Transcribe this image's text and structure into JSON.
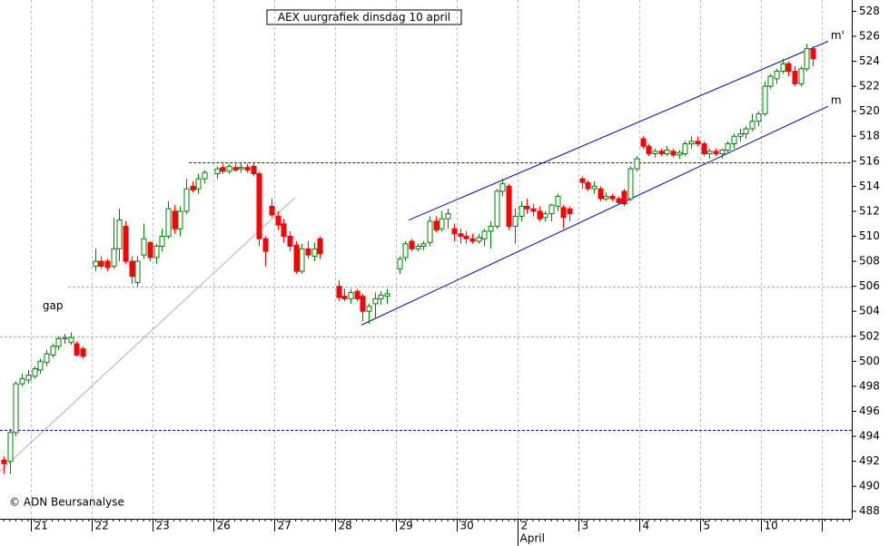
{
  "chart_data": {
    "type": "candlestick",
    "title": "AEX uurgrafiek dinsdag 10 april",
    "source": "© ADN Beursanalyse",
    "up_color": "#008000",
    "down_color": "#ff0000",
    "grid": true,
    "xlim": [
      -0.6,
      139.4
    ],
    "ylim": [
      487.4,
      528.9
    ],
    "yticks": [
      488,
      490,
      492,
      494,
      496,
      498,
      500,
      502,
      504,
      506,
      508,
      510,
      512,
      514,
      516,
      518,
      520,
      522,
      524,
      526,
      528
    ],
    "xticks": [
      {
        "value": 4.5,
        "label": "21"
      },
      {
        "value": 14.5,
        "label": "22"
      },
      {
        "value": 24.5,
        "label": "23"
      },
      {
        "value": 34.5,
        "label": "26"
      },
      {
        "value": 44.5,
        "label": "27"
      },
      {
        "value": 54.5,
        "label": "28"
      },
      {
        "value": 64.5,
        "label": "29"
      },
      {
        "value": 74.5,
        "label": "30"
      },
      {
        "value": 84.5,
        "label": "2"
      },
      {
        "value": 94.5,
        "label": "3"
      },
      {
        "value": 104.5,
        "label": "4"
      },
      {
        "value": 114.5,
        "label": "5"
      },
      {
        "value": 124.5,
        "label": "10"
      },
      {
        "value": 134.5,
        "label": null
      }
    ],
    "month_labels": [
      {
        "value": 84.5,
        "label": "April"
      }
    ],
    "x": [
      0,
      1,
      2,
      3,
      4,
      5,
      6,
      7,
      8,
      9,
      10,
      11,
      12,
      13,
      15,
      16,
      17,
      18,
      19,
      20,
      21,
      22,
      23,
      24,
      25,
      26,
      27,
      28,
      29,
      30,
      31,
      32,
      33,
      35,
      36,
      37,
      38,
      39,
      40,
      41,
      42,
      43,
      44,
      45,
      46,
      47,
      48,
      49,
      50,
      51,
      52,
      55,
      56,
      57,
      58,
      59,
      60,
      61,
      62,
      63,
      65,
      66,
      67,
      68,
      69,
      70,
      71,
      72,
      73,
      74,
      75,
      76,
      77,
      78,
      79,
      80,
      81,
      82,
      83,
      84,
      85,
      86,
      87,
      88,
      89,
      90,
      91,
      92,
      93,
      95,
      96,
      97,
      98,
      99,
      100,
      101,
      102,
      103,
      104,
      105,
      106,
      107,
      108,
      109,
      110,
      111,
      112,
      113,
      114,
      115,
      116,
      117,
      118,
      119,
      120,
      121,
      122,
      123,
      124,
      125,
      126,
      127,
      128,
      129,
      130,
      131,
      132,
      133
    ],
    "open": [
      492.1,
      492.0,
      494.3,
      498.2,
      498.5,
      498.8,
      499.3,
      499.9,
      500.5,
      501.2,
      501.8,
      501.5,
      501.4,
      501.0,
      507.6,
      508.0,
      508.0,
      507.6,
      509.0,
      510.8,
      508.0,
      506.3,
      508.5,
      509.5,
      508.3,
      509.2,
      510.0,
      512.0,
      510.6,
      512.0,
      514.0,
      513.8,
      514.6,
      515.0,
      515.5,
      515.2,
      515.5,
      515.4,
      515.5,
      515.6,
      515.0,
      509.8,
      512.4,
      511.6,
      511.0,
      510.0,
      509.3,
      507.2,
      509.0,
      508.4,
      509.8,
      506.0,
      505.2,
      505.0,
      505.6,
      505.2,
      504.0,
      504.6,
      505.0,
      505.2,
      507.4,
      508.3,
      509.6,
      509.0,
      509.2,
      509.5,
      511.2,
      510.6,
      511.4,
      510.6,
      510.2,
      510.0,
      509.8,
      509.6,
      509.8,
      510.4,
      510.8,
      513.6,
      514.0,
      510.8,
      511.6,
      512.4,
      512.2,
      512.0,
      511.5,
      511.8,
      512.4,
      512.3,
      512.2,
      514.6,
      514.3,
      513.8,
      513.8,
      513.0,
      513.2,
      513.0,
      513.6,
      513.0,
      515.4,
      517.8,
      517.2,
      516.6,
      516.8,
      516.6,
      516.8,
      516.5,
      516.6,
      517.4,
      517.6,
      517.4,
      516.6,
      516.8,
      516.6,
      516.9,
      517.4,
      518.0,
      518.2,
      518.6,
      519.2,
      519.8,
      522.0,
      522.6,
      523.2,
      523.8,
      523.2,
      522.2,
      523.4,
      525.0
    ],
    "high": [
      492.4,
      494.6,
      498.4,
      499.0,
      499.3,
      499.6,
      500.2,
      500.9,
      501.4,
      502.0,
      502.2,
      502.3,
      501.6,
      501.2,
      509.0,
      508.4,
      508.2,
      511.5,
      512.2,
      511.2,
      508.4,
      508.4,
      511.0,
      509.6,
      509.4,
      510.6,
      512.8,
      512.5,
      512.4,
      514.6,
      514.4,
      515.0,
      515.3,
      515.6,
      515.8,
      515.8,
      515.8,
      515.9,
      515.8,
      515.9,
      515.2,
      510.0,
      513.0,
      512.0,
      511.4,
      510.4,
      509.6,
      509.4,
      509.6,
      509.5,
      510.0,
      506.5,
      505.8,
      505.8,
      505.8,
      505.4,
      504.6,
      505.5,
      505.6,
      505.8,
      508.4,
      509.6,
      509.8,
      509.4,
      509.6,
      511.6,
      511.6,
      512.0,
      512.2,
      511.0,
      510.6,
      510.4,
      510.2,
      510.2,
      510.6,
      511.2,
      513.8,
      514.6,
      514.2,
      512.2,
      512.8,
      513.0,
      512.6,
      512.4,
      512.0,
      512.6,
      513.4,
      512.5,
      512.4,
      514.8,
      514.5,
      514.4,
      514.0,
      513.5,
      513.4,
      513.2,
      513.8,
      515.6,
      516.4,
      518.0,
      517.4,
      517.0,
      517.0,
      517.2,
      517.0,
      516.9,
      517.6,
      518.0,
      518.0,
      517.6,
      517.0,
      517.0,
      517.0,
      517.6,
      518.2,
      518.6,
      518.8,
      519.8,
      520.0,
      522.4,
      523.0,
      523.4,
      524.2,
      524.0,
      523.6,
      523.6,
      525.4,
      525.2
    ],
    "low": [
      491.0,
      491.0,
      494.0,
      498.0,
      498.2,
      498.6,
      499.0,
      499.6,
      500.3,
      500.9,
      501.4,
      501.3,
      500.4,
      500.2,
      507.2,
      507.4,
      507.2,
      507.4,
      508.0,
      507.8,
      506.2,
      506.0,
      508.2,
      508.0,
      507.8,
      508.8,
      509.8,
      510.2,
      510.0,
      511.8,
      513.5,
      513.4,
      514.2,
      514.6,
      515.0,
      515.0,
      515.2,
      515.1,
      515.1,
      514.8,
      509.2,
      507.6,
      511.5,
      510.5,
      509.5,
      508.8,
      507.0,
      507.0,
      508.2,
      508.0,
      508.2,
      504.8,
      504.8,
      504.6,
      504.8,
      503.2,
      503.0,
      503.5,
      504.5,
      504.6,
      507.0,
      508.0,
      508.8,
      508.8,
      508.9,
      509.2,
      510.3,
      510.4,
      510.6,
      509.6,
      509.4,
      509.4,
      509.4,
      509.4,
      509.2,
      509.0,
      510.6,
      513.2,
      510.5,
      509.4,
      511.2,
      511.8,
      511.6,
      511.2,
      511.2,
      511.2,
      512.0,
      510.6,
      511.2,
      513.8,
      513.6,
      513.4,
      512.8,
      512.8,
      512.8,
      512.5,
      512.4,
      512.8,
      515.2,
      517.0,
      516.4,
      516.3,
      516.4,
      516.4,
      516.3,
      516.2,
      516.4,
      517.0,
      517.2,
      516.4,
      516.2,
      516.4,
      516.2,
      516.6,
      517.0,
      517.6,
      517.8,
      518.4,
      518.8,
      519.6,
      521.8,
      522.2,
      523.0,
      522.8,
      522.0,
      522.0,
      523.2,
      523.6
    ],
    "close": [
      491.8,
      494.3,
      498.2,
      498.6,
      498.9,
      499.4,
      500.0,
      500.6,
      501.2,
      501.8,
      501.9,
      501.9,
      500.5,
      500.4,
      508.0,
      507.6,
      507.5,
      509.0,
      511.3,
      508.0,
      506.8,
      508.0,
      509.8,
      508.3,
      509.2,
      510.0,
      512.2,
      510.6,
      512.0,
      513.8,
      513.7,
      514.6,
      515.1,
      515.4,
      515.2,
      515.6,
      515.3,
      515.5,
      515.3,
      515.0,
      509.8,
      508.8,
      511.7,
      510.9,
      510.0,
      509.2,
      507.2,
      509.0,
      508.5,
      509.0,
      508.6,
      505.1,
      505.0,
      505.5,
      505.0,
      504.0,
      504.4,
      505.0,
      505.3,
      505.4,
      508.2,
      509.4,
      509.0,
      509.2,
      509.4,
      511.2,
      510.5,
      511.4,
      511.8,
      510.2,
      510.0,
      509.8,
      509.6,
      509.9,
      510.4,
      510.8,
      513.6,
      514.2,
      510.8,
      511.6,
      512.4,
      512.2,
      512.0,
      511.4,
      511.8,
      512.5,
      513.2,
      511.5,
      511.8,
      514.3,
      513.8,
      514.0,
      513.0,
      513.2,
      513.0,
      512.7,
      512.6,
      515.4,
      516.2,
      517.2,
      516.6,
      516.8,
      516.6,
      516.9,
      516.5,
      516.7,
      517.4,
      517.6,
      517.4,
      516.6,
      516.8,
      516.6,
      516.9,
      517.4,
      518.0,
      518.2,
      518.6,
      519.2,
      519.8,
      522.0,
      522.8,
      523.2,
      523.8,
      523.2,
      522.2,
      523.4,
      525.0,
      524.2
    ],
    "hlines": [
      {
        "y": 515.9,
        "from": 30.5,
        "color": "#0000cc"
      },
      {
        "y": 494.5,
        "from": -0.6,
        "color": "#0000cc"
      },
      {
        "y": 506,
        "from": 10.6,
        "color": "#b0b0b0"
      },
      {
        "y": 502,
        "from": -0.6,
        "color": "#b0b0b0"
      }
    ],
    "trendlines": [
      {
        "label": "m'",
        "color": "#0000cc",
        "points": [
          {
            "x": 66.6,
            "y": 511.3
          },
          {
            "x": 135.5,
            "y": 525.6
          }
        ]
      },
      {
        "label": "m",
        "color": "#0000cc",
        "points": [
          {
            "x": 58.8,
            "y": 502.9
          },
          {
            "x": 135.5,
            "y": 520.4
          }
        ]
      },
      {
        "label": null,
        "color": "#b0b0b0",
        "points": [
          {
            "x": -0.6,
            "y": 491.2
          },
          {
            "x": 47.9,
            "y": 513.1
          }
        ]
      }
    ],
    "annotations": [
      {
        "text": "gap",
        "x": 6.4,
        "y": 504.4
      }
    ]
  }
}
